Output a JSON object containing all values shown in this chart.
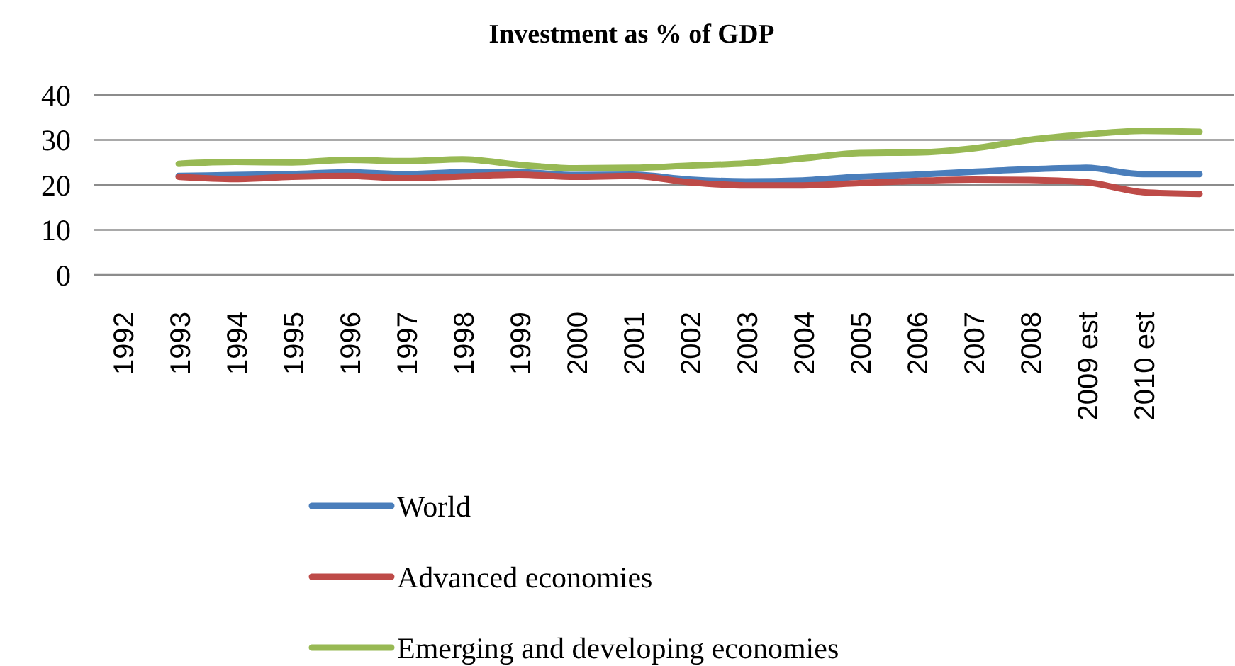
{
  "chart_data": {
    "type": "line",
    "title": "Investment as % of GDP",
    "categories": [
      "1992",
      "1993",
      "1994",
      "1995",
      "1996",
      "1997",
      "1998",
      "1999",
      "2000",
      "2001",
      "2002",
      "2003",
      "2004",
      "2005",
      "2006",
      "2007",
      "2008",
      "2009 est",
      "2010 est",
      null
    ],
    "series": [
      {
        "name": "World",
        "color": "#4a7ebb",
        "values": [
          null,
          22.0,
          22.2,
          22.4,
          22.8,
          22.4,
          22.8,
          22.8,
          22.2,
          22.3,
          21.2,
          20.8,
          21.0,
          21.8,
          22.3,
          22.9,
          23.5,
          23.8,
          22.4,
          22.4
        ]
      },
      {
        "name": "Advanced economies",
        "color": "#be4b48",
        "values": [
          null,
          21.8,
          21.3,
          21.8,
          22.0,
          21.5,
          21.9,
          22.3,
          21.8,
          22.0,
          20.6,
          19.9,
          19.9,
          20.4,
          20.9,
          21.2,
          21.1,
          20.6,
          18.4,
          18.0
        ]
      },
      {
        "name": "Emerging and developing economies",
        "color": "#98b954",
        "values": [
          null,
          24.7,
          25.1,
          25.0,
          25.6,
          25.3,
          25.7,
          24.5,
          23.7,
          23.8,
          24.3,
          24.8,
          25.9,
          27.1,
          27.2,
          28.1,
          30.0,
          31.2,
          32.0,
          31.8
        ]
      }
    ],
    "ylim": [
      0,
      40
    ],
    "yticks": [
      0,
      10,
      20,
      30,
      40
    ],
    "grid": "y",
    "legend": "bottom",
    "marker": "none",
    "line_style": "solid"
  }
}
